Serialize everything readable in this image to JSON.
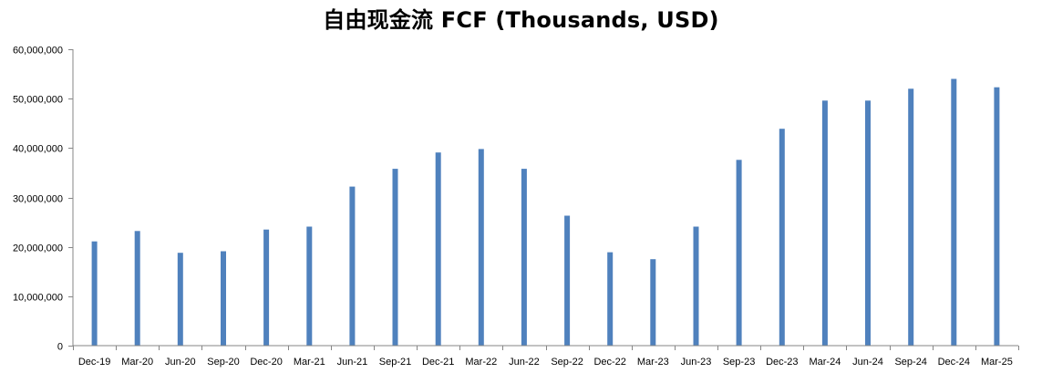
{
  "chart_data": {
    "type": "bar",
    "title": "自由现金流 FCF (Thousands, USD)",
    "xlabel": "",
    "ylabel": "",
    "ylim": [
      0,
      60000000
    ],
    "yticks": [
      0,
      10000000,
      20000000,
      30000000,
      40000000,
      50000000,
      60000000
    ],
    "ytick_labels": [
      "0",
      "10,000,000",
      "20,000,000",
      "30,000,000",
      "40,000,000",
      "50,000,000",
      "60,000,000"
    ],
    "grid": false,
    "legend": "none",
    "bar_color": "#4F81BD",
    "categories": [
      "Dec-19",
      "Mar-20",
      "Jun-20",
      "Sep-20",
      "Dec-20",
      "Mar-21",
      "Jun-21",
      "Sep-21",
      "Dec-21",
      "Mar-22",
      "Jun-22",
      "Sep-22",
      "Dec-22",
      "Mar-23",
      "Jun-23",
      "Sep-23",
      "Dec-23",
      "Mar-24",
      "Jun-24",
      "Sep-24",
      "Dec-24",
      "Mar-25"
    ],
    "values": [
      21100000,
      23200000,
      18800000,
      19100000,
      23500000,
      24100000,
      32200000,
      35800000,
      39100000,
      39800000,
      35800000,
      26300000,
      18900000,
      17500000,
      24100000,
      37600000,
      43900000,
      49600000,
      49600000,
      52000000,
      54000000,
      52300000
    ]
  }
}
